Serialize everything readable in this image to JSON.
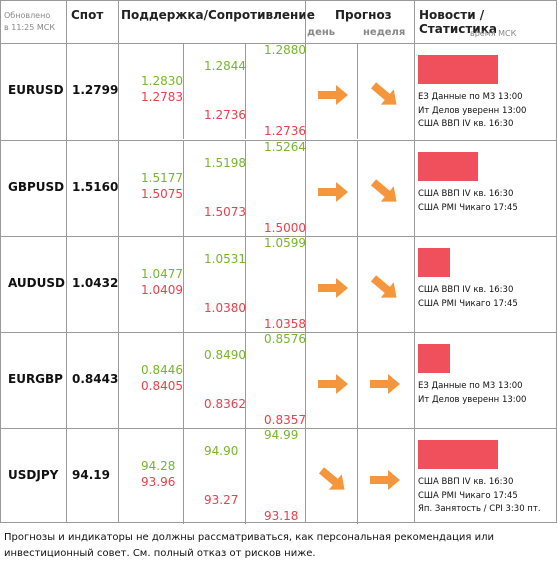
{
  "header": {
    "updated": "Обновлено",
    "updated_time": "в 11:25 МСК",
    "spot": "Спот",
    "levels": "Поддержка/Сопротивление",
    "forecast": "Прогноз",
    "day": "день",
    "week": "неделя",
    "news": "Новости / Статистика",
    "news_time": "время МСК"
  },
  "table": {
    "rows": [
      {
        "pair": "EURUSD",
        "spot": "1.2799",
        "r1": "1.2830",
        "s1": "1.2783",
        "r2": "1.2844",
        "s2": "1.2736",
        "r3": "1.2880",
        "s3": "1.2736",
        "news": [
          "ЕЗ Данные по М3 13:00",
          "Ит Делов уверенн 13:00",
          "США ВВП IV кв. 16:30"
        ]
      },
      {
        "pair": "GBPUSD",
        "spot": "1.5160",
        "r1": "1.5177",
        "s1": "1.5075",
        "r2": "1.5198",
        "s2": "1.5073",
        "r3": "1.5264",
        "s3": "1.5000",
        "news": [
          "США ВВП IV кв. 16:30",
          "США PMI Чикаго 17:45"
        ]
      },
      {
        "pair": "AUDUSD",
        "spot": "1.0432",
        "r1": "1.0477",
        "s1": "1.0409",
        "r2": "1.0531",
        "s2": "1.0380",
        "r3": "1.0599",
        "s3": "1.0358",
        "news": [
          "США ВВП IV кв. 16:30",
          "США PMI Чикаго 17:45"
        ]
      },
      {
        "pair": "EURGBP",
        "spot": "0.8443",
        "r1": "0.8446",
        "s1": "0.8405",
        "r2": "0.8490",
        "s2": "0.8362",
        "r3": "0.8576",
        "s3": "0.8357",
        "news": [
          "ЕЗ Данные по М3 13:00",
          "Ит Делов уверенн 13:00"
        ]
      },
      {
        "pair": "USDJPY",
        "spot": "94.19",
        "r1": "94.28",
        "s1": "93.96",
        "r2": "94.90",
        "s2": "93.27",
        "r3": "94.99",
        "s3": "93.18",
        "news": [
          "США ВВП IV кв. 16:30",
          "США PMI Чикаго 17:45",
          "Яп. Занятость / CPI 3:30 пт."
        ]
      }
    ]
  },
  "footer": {
    "disclaimer": "Прогнозы и индикаторы не должны рассматриваться, как персональная рекомендация или инвестиционный совет. См. полный отказ от рисков ниже."
  }
}
